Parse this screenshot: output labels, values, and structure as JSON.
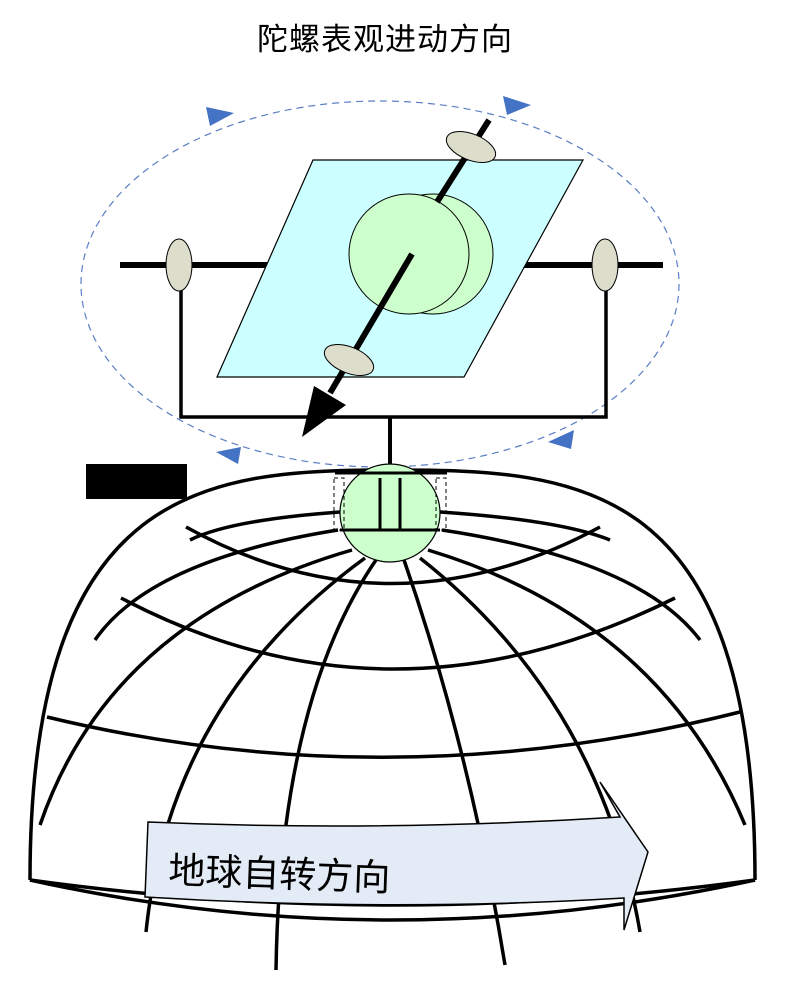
{
  "title": "陀螺表观进动方向",
  "earth_rotation_label": "地球自转方向",
  "colors": {
    "plane_fill": "#ccffff",
    "rotor_fill": "#ccffcc",
    "mount_fill": "#ddddcc",
    "orbit_dash": "#5b7fc4",
    "orbit_arrow": "#4472c4",
    "arrow_fill": "#e3ebf6",
    "ink": "#000000"
  },
  "icons": [
    "gyroscope-icon",
    "earth-globe-icon",
    "rotation-arrow-icon",
    "precession-orbit-icon"
  ]
}
